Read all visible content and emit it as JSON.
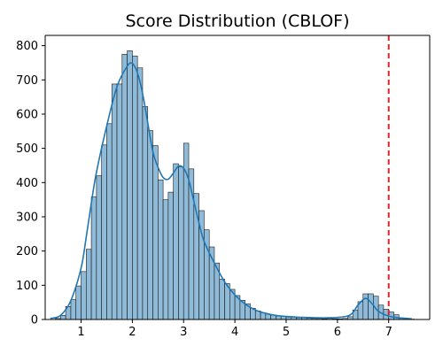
{
  "chart_data": {
    "type": "bar",
    "title": "Score Distribution (CBLOF)",
    "xlabel": "",
    "ylabel": "",
    "xlim": [
      0.3,
      7.8
    ],
    "ylim": [
      0,
      830
    ],
    "x_ticks": [
      "1",
      "2",
      "3",
      "4",
      "5",
      "6",
      "7"
    ],
    "y_ticks": [
      "0",
      "100",
      "200",
      "300",
      "400",
      "500",
      "600",
      "700",
      "800"
    ],
    "bins": {
      "start": 0.5,
      "width": 0.1,
      "counts": [
        3,
        12,
        38,
        58,
        98,
        140,
        205,
        358,
        420,
        510,
        572,
        688,
        688,
        775,
        785,
        770,
        735,
        622,
        552,
        508,
        408,
        350,
        372,
        455,
        446,
        515,
        440,
        368,
        318,
        262,
        212,
        165,
        118,
        105,
        88,
        70,
        56,
        46,
        33,
        25,
        20,
        16,
        13,
        10,
        9,
        7,
        7,
        5,
        5,
        4,
        3,
        3,
        2,
        3,
        2,
        2,
        3,
        8,
        28,
        52,
        75,
        75,
        68,
        42,
        30,
        22,
        14,
        4,
        1,
        1
      ]
    },
    "series": [
      {
        "type": "kde",
        "x": [
          0.4,
          0.6,
          0.8,
          1.0,
          1.1,
          1.2,
          1.3,
          1.5,
          1.7,
          1.9,
          2.0,
          2.1,
          2.2,
          2.3,
          2.4,
          2.5,
          2.6,
          2.7,
          2.8,
          2.9,
          3.0,
          3.1,
          3.2,
          3.3,
          3.4,
          3.6,
          3.8,
          4.0,
          4.2,
          4.4,
          4.6,
          4.8,
          5.0,
          5.2,
          5.4,
          5.6,
          5.8,
          6.0,
          6.2,
          6.3,
          6.4,
          6.5,
          6.55,
          6.6,
          6.7,
          6.8,
          7.0,
          7.2,
          7.45
        ],
        "values": [
          3,
          12,
          55,
          150,
          240,
          340,
          430,
          565,
          680,
          740,
          748,
          720,
          660,
          575,
          490,
          445,
          415,
          410,
          428,
          448,
          442,
          408,
          345,
          282,
          228,
          165,
          110,
          72,
          45,
          28,
          18,
          12,
          9,
          7,
          6,
          5,
          5,
          6,
          10,
          20,
          42,
          58,
          62,
          58,
          42,
          24,
          10,
          5,
          2
        ],
        "color": "#1f77b4"
      }
    ],
    "threshold": {
      "x": 7.0,
      "color": "#d62728",
      "style": "dashed"
    },
    "colors": {
      "bar_fill": "#8fbbd9",
      "bar_edge": "#1a1a1a",
      "line": "#1f77b4",
      "axis": "#000000"
    },
    "grid": false,
    "legend": "none"
  }
}
